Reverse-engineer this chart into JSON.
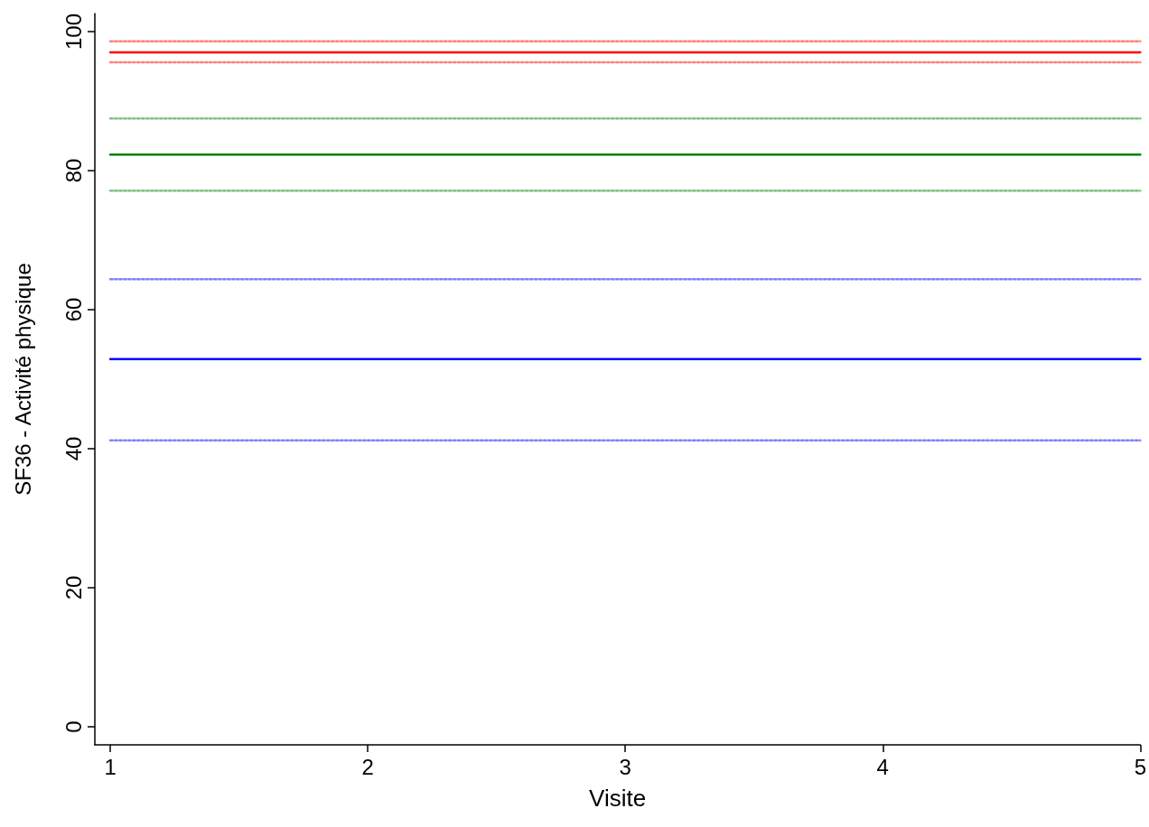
{
  "chart_data": {
    "type": "line",
    "xlabel": "Visite",
    "ylabel": "SF36 - Activité physique",
    "x": [
      1,
      5
    ],
    "xlim": [
      0.94,
      5
    ],
    "xticks": [
      1,
      2,
      3,
      4,
      5
    ],
    "ylim": [
      -2.6,
      102.6
    ],
    "yticks": [
      0,
      20,
      40,
      60,
      80,
      100
    ],
    "grid": false,
    "marker": "none",
    "series": [
      {
        "color": "#ff0000",
        "values": [
          97,
          97
        ],
        "line_style": "solid"
      },
      {
        "color": "#ff8080",
        "values": [
          98.6,
          98.6
        ],
        "line_style": "dotted"
      },
      {
        "color": "#ff8080",
        "values": [
          95.6,
          95.6
        ],
        "line_style": "dotted"
      },
      {
        "color": "#008000",
        "values": [
          82.3,
          82.3
        ],
        "line_style": "solid"
      },
      {
        "color": "#80c080",
        "values": [
          87.5,
          87.5
        ],
        "line_style": "dotted"
      },
      {
        "color": "#80c080",
        "values": [
          77.1,
          77.1
        ],
        "line_style": "dotted"
      },
      {
        "color": "#0000ff",
        "values": [
          52.9,
          52.9
        ],
        "line_style": "solid"
      },
      {
        "color": "#8080ff",
        "values": [
          64.4,
          64.4
        ],
        "line_style": "dotted"
      },
      {
        "color": "#8080ff",
        "values": [
          41.2,
          41.2
        ],
        "line_style": "dotted"
      }
    ]
  }
}
